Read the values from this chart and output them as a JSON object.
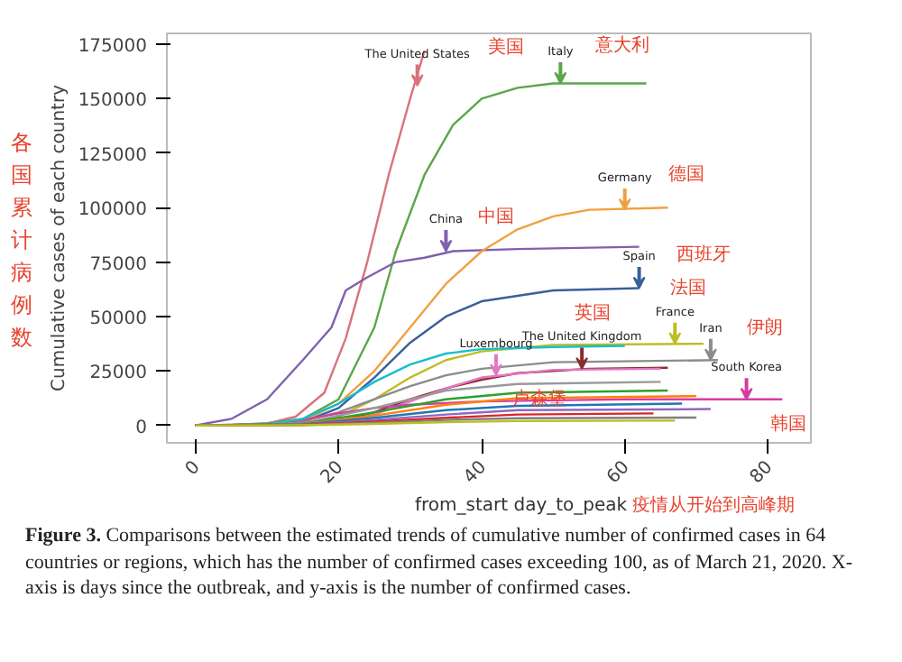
{
  "chart_data": {
    "type": "line",
    "xlabel": "from_start day_to_peak",
    "ylabel": "Cumulative cases of each country",
    "xlim": [
      -4,
      86
    ],
    "ylim": [
      -8000,
      180000
    ],
    "xticks": [
      0,
      20,
      40,
      60,
      80
    ],
    "yticks": [
      0,
      25000,
      50000,
      75000,
      100000,
      125000,
      150000,
      175000
    ],
    "grid": false,
    "line_style": "solid",
    "marker": "none",
    "series": [
      {
        "color": "#d9737a",
        "x": [
          0,
          5,
          10,
          14,
          18,
          21,
          24,
          27,
          30,
          32
        ],
        "values": [
          0,
          100,
          800,
          4000,
          15000,
          40000,
          75000,
          115000,
          150000,
          172000
        ]
      },
      {
        "color": "#5aa64a",
        "x": [
          0,
          5,
          10,
          15,
          20,
          25,
          28,
          32,
          36,
          40,
          45,
          50,
          63
        ],
        "values": [
          0,
          200,
          1000,
          3000,
          12000,
          45000,
          80000,
          115000,
          138000,
          150000,
          155000,
          157000,
          157000
        ]
      },
      {
        "color": "#8060b0",
        "x": [
          0,
          5,
          10,
          15,
          19,
          21,
          24,
          28,
          32,
          36,
          45,
          62
        ],
        "values": [
          0,
          3000,
          12000,
          30000,
          45000,
          62000,
          68000,
          75000,
          77000,
          80000,
          81000,
          82000
        ]
      },
      {
        "color": "#f0a040",
        "x": [
          0,
          10,
          15,
          20,
          25,
          30,
          35,
          40,
          45,
          50,
          55,
          66
        ],
        "values": [
          0,
          200,
          2000,
          10000,
          25000,
          45000,
          65000,
          80000,
          90000,
          96000,
          99000,
          100000
        ]
      },
      {
        "color": "#3a5f9a",
        "x": [
          0,
          10,
          15,
          20,
          25,
          30,
          35,
          40,
          50,
          62
        ],
        "values": [
          0,
          200,
          1500,
          8000,
          22000,
          38000,
          50000,
          57000,
          62000,
          63000
        ]
      },
      {
        "color": "#bcbd22",
        "x": [
          0,
          10,
          15,
          20,
          25,
          30,
          35,
          40,
          50,
          71
        ],
        "values": [
          0,
          100,
          800,
          4000,
          12000,
          22000,
          30000,
          34000,
          37000,
          37500
        ]
      },
      {
        "color": "#8c8c8c",
        "x": [
          0,
          10,
          15,
          20,
          25,
          30,
          35,
          40,
          50,
          73
        ],
        "values": [
          0,
          300,
          2000,
          6000,
          12000,
          18000,
          23000,
          26000,
          29000,
          30000
        ]
      },
      {
        "color": "#8c2d2d",
        "x": [
          0,
          15,
          20,
          25,
          30,
          35,
          40,
          45,
          55,
          66
        ],
        "values": [
          0,
          300,
          2000,
          6000,
          12000,
          17000,
          21000,
          24000,
          26000,
          26500
        ]
      },
      {
        "color": "#e377c2",
        "x": [
          0,
          15,
          20,
          25,
          30,
          35,
          40,
          50,
          65
        ],
        "values": [
          0,
          200,
          1500,
          5000,
          11000,
          17000,
          22000,
          25500,
          26000
        ]
      },
      {
        "color": "#d63ca0",
        "x": [
          0,
          10,
          15,
          20,
          25,
          30,
          40,
          50,
          60,
          82
        ],
        "values": [
          0,
          500,
          2500,
          5500,
          8000,
          9500,
          11000,
          11500,
          12000,
          12000
        ]
      },
      {
        "color": "#17becf",
        "x": [
          0,
          10,
          15,
          20,
          25,
          30,
          35,
          40,
          50,
          60
        ],
        "values": [
          0,
          500,
          3000,
          10000,
          20000,
          28000,
          33000,
          35000,
          36000,
          36500
        ]
      },
      {
        "color": "#999999",
        "x": [
          0,
          15,
          25,
          35,
          45,
          65
        ],
        "values": [
          0,
          1000,
          8000,
          16000,
          19000,
          20000
        ]
      },
      {
        "color": "#2ca02c",
        "x": [
          0,
          15,
          25,
          35,
          45,
          66
        ],
        "values": [
          0,
          800,
          6000,
          12000,
          15000,
          16000
        ]
      },
      {
        "color": "#ff7f0e",
        "x": [
          0,
          15,
          25,
          35,
          45,
          70
        ],
        "values": [
          0,
          600,
          4500,
          9500,
          12500,
          13500
        ]
      },
      {
        "color": "#1f77b4",
        "x": [
          0,
          15,
          25,
          35,
          45,
          68
        ],
        "values": [
          0,
          500,
          3500,
          7000,
          9000,
          10000
        ]
      },
      {
        "color": "#9467bd",
        "x": [
          0,
          15,
          25,
          35,
          45,
          72
        ],
        "values": [
          0,
          400,
          2500,
          5000,
          7000,
          7500
        ]
      },
      {
        "color": "#d62728",
        "x": [
          0,
          15,
          25,
          35,
          45,
          64
        ],
        "values": [
          0,
          300,
          1800,
          3500,
          5000,
          5500
        ]
      },
      {
        "color": "#7f7f7f",
        "x": [
          0,
          15,
          25,
          35,
          45,
          70
        ],
        "values": [
          0,
          200,
          1200,
          2500,
          3300,
          3600
        ]
      },
      {
        "color": "#bcbd22",
        "x": [
          0,
          15,
          25,
          35,
          45,
          67
        ],
        "values": [
          0,
          100,
          700,
          1500,
          2000,
          2200
        ]
      }
    ],
    "annotations": [
      {
        "text": "The United States",
        "x": 31,
        "y": 156000
      },
      "美国",
      {
        "text": "Italy",
        "x": 51,
        "y": 157000
      },
      "意大利",
      {
        "text": "China",
        "x": 35,
        "y": 80000
      },
      "中国",
      {
        "text": "Germany",
        "x": 60,
        "y": 99000
      },
      "德国",
      {
        "text": "Spain",
        "x": 62,
        "y": 63000
      },
      "西班牙",
      {
        "text": "France",
        "x": 67,
        "y": 37500
      },
      "法国",
      {
        "text": "Iran",
        "x": 72,
        "y": 30000
      },
      "伊朗",
      {
        "text": "The United Kingdom",
        "x": 54,
        "y": 26000
      },
      "英国",
      {
        "text": "Luxembourg",
        "x": 42,
        "y": 23000
      },
      "卢森堡",
      {
        "text": "South Korea",
        "x": 77,
        "y": 12000
      },
      "韩国",
      "各国累计病例数",
      "疫情从开始到高峰期",
      "Figure 3. Comparisons between the estimated trends of cumulative number of confirmed cases in 64 countries or regions, which has the number of confirmed cases exceeding 100, as of March 21, 2020. X-axis is days since the outbreak, and y-axis is the number of confirmed cases."
    ]
  }
}
